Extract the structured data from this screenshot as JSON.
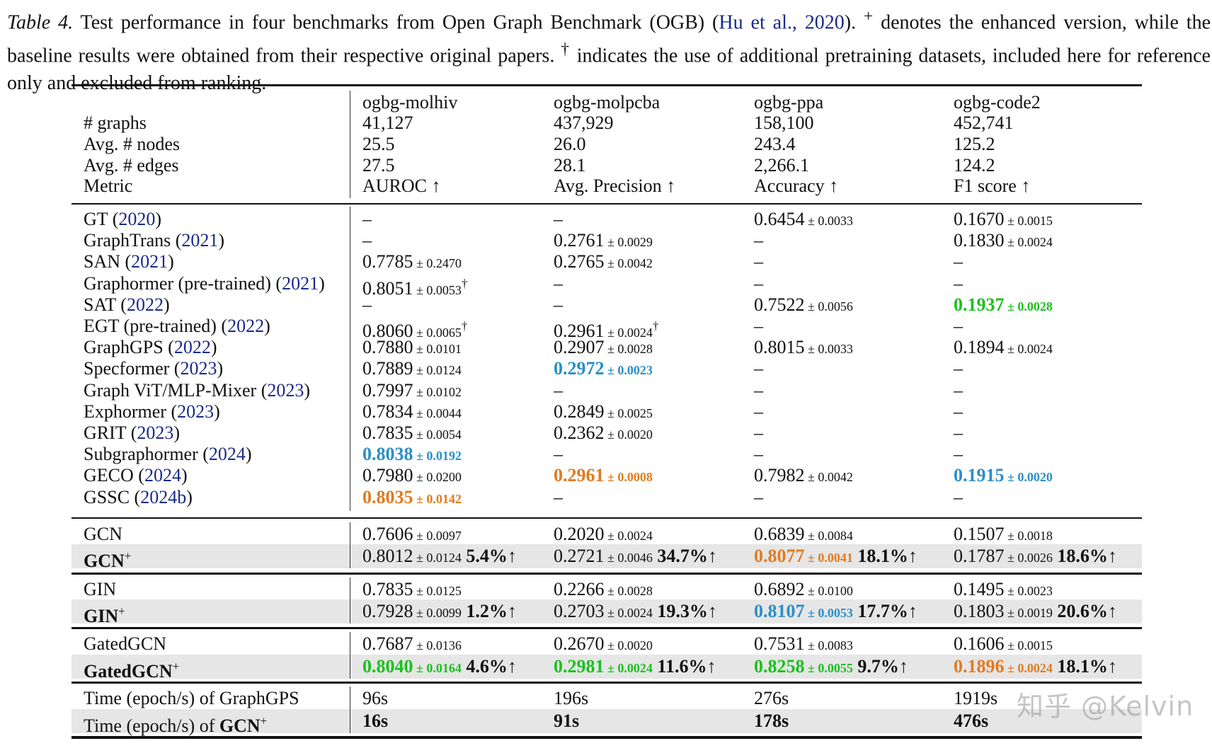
{
  "caption": {
    "label": "Table 4.",
    "text1": " Test performance in four benchmarks from Open Graph Benchmark (OGB) (",
    "cite": "Hu et al., 2020",
    "text2": "). ",
    "plus": "+",
    "text3": " denotes the enhanced version, while the baseline results were obtained from their respective original papers. ",
    "dagger": "†",
    "text4": " indicates the use of additional pretraining datasets, included here for reference only and excluded from ranking."
  },
  "colors": {
    "best": "#19c21c",
    "second": "#2a8fc6",
    "third": "#e07b1f",
    "cite": "#1a2a8a"
  },
  "header": {
    "row_labels": [
      "",
      "# graphs",
      "Avg. # nodes",
      "Avg. # edges",
      "Metric"
    ],
    "columns": [
      [
        "ogbg-molhiv",
        "41,127",
        "25.5",
        "27.5",
        "AUROC ↑"
      ],
      [
        "ogbg-molpcba",
        "437,929",
        "26.0",
        "28.1",
        "Avg. Precision ↑"
      ],
      [
        "ogbg-ppa",
        "158,100",
        "243.4",
        "2,266.1",
        "Accuracy ↑"
      ],
      [
        "ogbg-code2",
        "452,741",
        "125.2",
        "124.2",
        "F1 score ↑"
      ]
    ]
  },
  "baselines": [
    {
      "name": "GT",
      "year": "2020",
      "cells": [
        {
          "v": "–"
        },
        {
          "v": "–"
        },
        {
          "v": "0.6454",
          "pm": "0.0033"
        },
        {
          "v": "0.1670",
          "pm": "0.0015"
        }
      ]
    },
    {
      "name": "GraphTrans",
      "year": "2021",
      "cells": [
        {
          "v": "–"
        },
        {
          "v": "0.2761",
          "pm": "0.0029"
        },
        {
          "v": "–"
        },
        {
          "v": "0.1830",
          "pm": "0.0024"
        }
      ]
    },
    {
      "name": "SAN",
      "year": "2021",
      "cells": [
        {
          "v": "0.7785",
          "pm": "0.2470"
        },
        {
          "v": "0.2765",
          "pm": "0.0042"
        },
        {
          "v": "–"
        },
        {
          "v": "–"
        }
      ]
    },
    {
      "name": "Graphormer (pre-trained)",
      "year": "2021",
      "cells": [
        {
          "v": "0.8051",
          "pm": "0.0053",
          "dagger": "†"
        },
        {
          "v": "–"
        },
        {
          "v": "–"
        },
        {
          "v": "–"
        }
      ]
    },
    {
      "name": "SAT",
      "year": "2022",
      "cells": [
        {
          "v": "–"
        },
        {
          "v": "–"
        },
        {
          "v": "0.7522",
          "pm": "0.0056"
        },
        {
          "v": "0.1937",
          "pm": "0.0028",
          "rank": "best"
        }
      ]
    },
    {
      "name": "EGT (pre-trained)",
      "year": "2022",
      "cells": [
        {
          "v": "0.8060",
          "pm": "0.0065",
          "dagger": "†"
        },
        {
          "v": "0.2961",
          "pm": "0.0024",
          "dagger": "†"
        },
        {
          "v": "–"
        },
        {
          "v": "–"
        }
      ]
    },
    {
      "name": "GraphGPS",
      "year": "2022",
      "cells": [
        {
          "v": "0.7880",
          "pm": "0.0101"
        },
        {
          "v": "0.2907",
          "pm": "0.0028"
        },
        {
          "v": "0.8015",
          "pm": "0.0033"
        },
        {
          "v": "0.1894",
          "pm": "0.0024"
        }
      ]
    },
    {
      "name": "Specformer",
      "year": "2023",
      "cells": [
        {
          "v": "0.7889",
          "pm": "0.0124"
        },
        {
          "v": "0.2972",
          "pm": "0.0023",
          "rank": "second"
        },
        {
          "v": "–"
        },
        {
          "v": "–"
        }
      ]
    },
    {
      "name": "Graph ViT/MLP-Mixer",
      "year": "2023",
      "cells": [
        {
          "v": "0.7997",
          "pm": "0.0102"
        },
        {
          "v": "–"
        },
        {
          "v": "–"
        },
        {
          "v": "–"
        }
      ]
    },
    {
      "name": "Exphormer",
      "year": "2023",
      "cells": [
        {
          "v": "0.7834",
          "pm": "0.0044"
        },
        {
          "v": "0.2849",
          "pm": "0.0025"
        },
        {
          "v": "–"
        },
        {
          "v": "–"
        }
      ]
    },
    {
      "name": "GRIT",
      "year": "2023",
      "cells": [
        {
          "v": "0.7835",
          "pm": "0.0054"
        },
        {
          "v": "0.2362",
          "pm": "0.0020"
        },
        {
          "v": "–"
        },
        {
          "v": "–"
        }
      ]
    },
    {
      "name": "Subgraphormer",
      "year": "2024",
      "cells": [
        {
          "v": "0.8038",
          "pm": "0.0192",
          "rank": "second"
        },
        {
          "v": "–"
        },
        {
          "v": "–"
        },
        {
          "v": "–"
        }
      ]
    },
    {
      "name": "GECO",
      "year": "2024",
      "cells": [
        {
          "v": "0.7980",
          "pm": "0.0200"
        },
        {
          "v": "0.2961",
          "pm": "0.0008",
          "rank": "third"
        },
        {
          "v": "0.7982",
          "pm": "0.0042"
        },
        {
          "v": "0.1915",
          "pm": "0.0020",
          "rank": "second"
        }
      ]
    },
    {
      "name": "GSSC",
      "year": "2024b",
      "cells": [
        {
          "v": "0.8035",
          "pm": "0.0142",
          "rank": "third"
        },
        {
          "v": "–"
        },
        {
          "v": "–"
        },
        {
          "v": "–"
        }
      ]
    }
  ],
  "groups": [
    {
      "rows": [
        {
          "name": "GCN",
          "cells": [
            {
              "v": "0.7606",
              "pm": "0.0097"
            },
            {
              "v": "0.2020",
              "pm": "0.0024"
            },
            {
              "v": "0.6839",
              "pm": "0.0084"
            },
            {
              "v": "0.1507",
              "pm": "0.0018"
            }
          ]
        },
        {
          "name": "GCN",
          "plus": "+",
          "enhanced": true,
          "cells": [
            {
              "v": "0.8012",
              "pm": "0.0124",
              "imp": "5.4%↑"
            },
            {
              "v": "0.2721",
              "pm": "0.0046",
              "imp": "34.7%↑"
            },
            {
              "v": "0.8077",
              "pm": "0.0041",
              "rank": "third",
              "imp": "18.1%↑"
            },
            {
              "v": "0.1787",
              "pm": "0.0026",
              "imp": "18.6%↑"
            }
          ]
        }
      ]
    },
    {
      "rows": [
        {
          "name": "GIN",
          "cells": [
            {
              "v": "0.7835",
              "pm": "0.0125"
            },
            {
              "v": "0.2266",
              "pm": "0.0028"
            },
            {
              "v": "0.6892",
              "pm": "0.0100"
            },
            {
              "v": "0.1495",
              "pm": "0.0023"
            }
          ]
        },
        {
          "name": "GIN",
          "plus": "+",
          "enhanced": true,
          "cells": [
            {
              "v": "0.7928",
              "pm": "0.0099",
              "imp": "1.2%↑"
            },
            {
              "v": "0.2703",
              "pm": "0.0024",
              "imp": "19.3%↑"
            },
            {
              "v": "0.8107",
              "pm": "0.0053",
              "rank": "second",
              "imp": "17.7%↑"
            },
            {
              "v": "0.1803",
              "pm": "0.0019",
              "imp": "20.6%↑"
            }
          ]
        }
      ]
    },
    {
      "rows": [
        {
          "name": "GatedGCN",
          "cells": [
            {
              "v": "0.7687",
              "pm": "0.0136"
            },
            {
              "v": "0.2670",
              "pm": "0.0020"
            },
            {
              "v": "0.7531",
              "pm": "0.0083"
            },
            {
              "v": "0.1606",
              "pm": "0.0015"
            }
          ]
        },
        {
          "name": "GatedGCN",
          "plus": "+",
          "enhanced": true,
          "cells": [
            {
              "v": "0.8040",
              "pm": "0.0164",
              "rank": "best",
              "imp": "4.6%↑"
            },
            {
              "v": "0.2981",
              "pm": "0.0024",
              "rank": "best",
              "imp": "11.6%↑"
            },
            {
              "v": "0.8258",
              "pm": "0.0055",
              "rank": "best",
              "imp": "9.7%↑"
            },
            {
              "v": "0.1896",
              "pm": "0.0024",
              "rank": "third",
              "imp": "18.1%↑"
            }
          ]
        }
      ]
    },
    {
      "rows": [
        {
          "name": "Time (epoch/s) of GraphGPS",
          "cells": [
            {
              "v": "96s"
            },
            {
              "v": "196s"
            },
            {
              "v": "276s"
            },
            {
              "v": "1919s"
            }
          ]
        },
        {
          "name": "Time (epoch/s) of ",
          "bold_name": "GCN",
          "plus": "+",
          "enhanced": true,
          "boldvals": true,
          "cells": [
            {
              "v": "16s"
            },
            {
              "v": "91s"
            },
            {
              "v": "178s"
            },
            {
              "v": "476s"
            }
          ]
        }
      ]
    }
  ],
  "watermark": "知乎 @Kelvin"
}
